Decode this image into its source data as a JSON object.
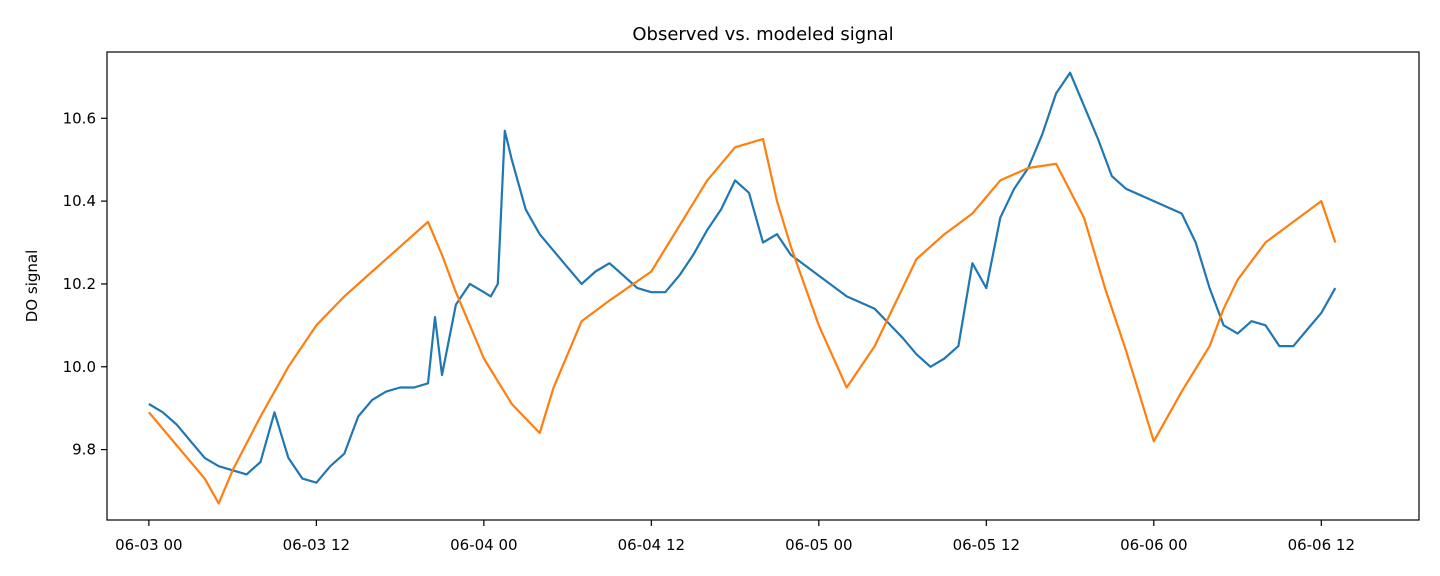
{
  "chart_data": {
    "type": "line",
    "title": "Observed vs. modeled signal",
    "xlabel": "",
    "ylabel": "DO signal",
    "x_ticks": [
      "06-03 00",
      "06-03 12",
      "06-04 00",
      "06-04 12",
      "06-05 00",
      "06-05 12",
      "06-06 00",
      "06-06 12"
    ],
    "y_ticks": [
      "9.8",
      "10.0",
      "10.2",
      "10.4",
      "10.6"
    ],
    "xlim": [
      "06-02 21:00",
      "06-06 19:00"
    ],
    "ylim": [
      9.63,
      10.76
    ],
    "grid": false,
    "legend": "none",
    "series": [
      {
        "color": "#1f77b4",
        "x": [
          "06-03 00:00",
          "06-03 01:00",
          "06-03 02:00",
          "06-03 03:00",
          "06-03 04:00",
          "06-03 05:00",
          "06-03 06:00",
          "06-03 07:00",
          "06-03 08:00",
          "06-03 09:00",
          "06-03 10:00",
          "06-03 11:00",
          "06-03 12:00",
          "06-03 13:00",
          "06-03 14:00",
          "06-03 15:00",
          "06-03 16:00",
          "06-03 17:00",
          "06-03 18:00",
          "06-03 19:00",
          "06-03 20:00",
          "06-03 20:30",
          "06-03 21:00",
          "06-03 22:00",
          "06-03 23:00",
          "06-04 00:00",
          "06-04 00:30",
          "06-04 01:00",
          "06-04 01:30",
          "06-04 02:00",
          "06-04 03:00",
          "06-04 04:00",
          "06-04 05:00",
          "06-04 06:00",
          "06-04 07:00",
          "06-04 08:00",
          "06-04 09:00",
          "06-04 10:00",
          "06-04 11:00",
          "06-04 12:00",
          "06-04 13:00",
          "06-04 14:00",
          "06-04 15:00",
          "06-04 16:00",
          "06-04 17:00",
          "06-04 18:00",
          "06-04 19:00",
          "06-04 20:00",
          "06-04 21:00",
          "06-04 22:00",
          "06-05 00:00",
          "06-05 02:00",
          "06-05 04:00",
          "06-05 06:00",
          "06-05 07:00",
          "06-05 08:00",
          "06-05 09:00",
          "06-05 10:00",
          "06-05 11:00",
          "06-05 12:00",
          "06-05 13:00",
          "06-05 14:00",
          "06-05 15:00",
          "06-05 16:00",
          "06-05 17:00",
          "06-05 18:00",
          "06-05 19:00",
          "06-05 20:00",
          "06-05 21:00",
          "06-05 22:00",
          "06-06 00:00",
          "06-06 02:00",
          "06-06 03:00",
          "06-06 04:00",
          "06-06 05:00",
          "06-06 06:00",
          "06-06 07:00",
          "06-06 08:00",
          "06-06 09:00",
          "06-06 10:00",
          "06-06 11:00",
          "06-06 12:00",
          "06-06 13:00"
        ],
        "y": [
          9.91,
          9.89,
          9.86,
          9.82,
          9.78,
          9.76,
          9.75,
          9.74,
          9.77,
          9.89,
          9.78,
          9.73,
          9.72,
          9.76,
          9.79,
          9.88,
          9.92,
          9.94,
          9.95,
          9.95,
          9.96,
          10.12,
          9.98,
          10.15,
          10.2,
          10.18,
          10.17,
          10.2,
          10.57,
          10.5,
          10.38,
          10.32,
          10.28,
          10.24,
          10.2,
          10.23,
          10.25,
          10.22,
          10.19,
          10.18,
          10.18,
          10.22,
          10.27,
          10.33,
          10.38,
          10.45,
          10.42,
          10.3,
          10.32,
          10.27,
          10.22,
          10.17,
          10.14,
          10.07,
          10.03,
          10.0,
          10.02,
          10.05,
          10.25,
          10.19,
          10.36,
          10.43,
          10.48,
          10.56,
          10.66,
          10.71,
          10.63,
          10.55,
          10.46,
          10.43,
          10.4,
          10.37,
          10.3,
          10.19,
          10.1,
          10.08,
          10.11,
          10.1,
          10.05,
          10.05,
          10.09,
          10.13,
          10.19
        ]
      },
      {
        "color": "#ff7f0e",
        "x": [
          "06-03 00:00",
          "06-03 02:00",
          "06-03 04:00",
          "06-03 05:00",
          "06-03 06:00",
          "06-03 08:00",
          "06-03 10:00",
          "06-03 12:00",
          "06-03 14:00",
          "06-03 16:00",
          "06-03 18:00",
          "06-03 20:00",
          "06-03 21:00",
          "06-03 22:00",
          "06-04 00:00",
          "06-04 02:00",
          "06-04 04:00",
          "06-04 05:00",
          "06-04 07:00",
          "06-04 09:00",
          "06-04 12:00",
          "06-04 14:00",
          "06-04 16:00",
          "06-04 18:00",
          "06-04 20:00",
          "06-04 21:00",
          "06-04 22:00",
          "06-05 00:00",
          "06-05 02:00",
          "06-05 04:00",
          "06-05 05:00",
          "06-05 07:00",
          "06-05 09:00",
          "06-05 11:00",
          "06-05 13:00",
          "06-05 15:00",
          "06-05 17:00",
          "06-05 19:00",
          "06-05 20:30",
          "06-05 22:00",
          "06-06 00:00",
          "06-06 02:00",
          "06-06 04:00",
          "06-06 05:00",
          "06-06 06:00",
          "06-06 08:00",
          "06-06 10:00",
          "06-06 12:00",
          "06-06 13:00"
        ],
        "y": [
          9.89,
          9.81,
          9.73,
          9.67,
          9.75,
          9.88,
          10.0,
          10.1,
          10.17,
          10.23,
          10.29,
          10.35,
          10.27,
          10.18,
          10.02,
          9.91,
          9.84,
          9.95,
          10.11,
          10.16,
          10.23,
          10.34,
          10.45,
          10.53,
          10.55,
          10.4,
          10.29,
          10.1,
          9.95,
          10.05,
          10.12,
          10.26,
          10.32,
          10.37,
          10.45,
          10.48,
          10.49,
          10.36,
          10.19,
          10.04,
          9.82,
          9.94,
          10.05,
          10.14,
          10.21,
          10.3,
          10.35,
          10.4,
          10.3
        ]
      }
    ]
  }
}
